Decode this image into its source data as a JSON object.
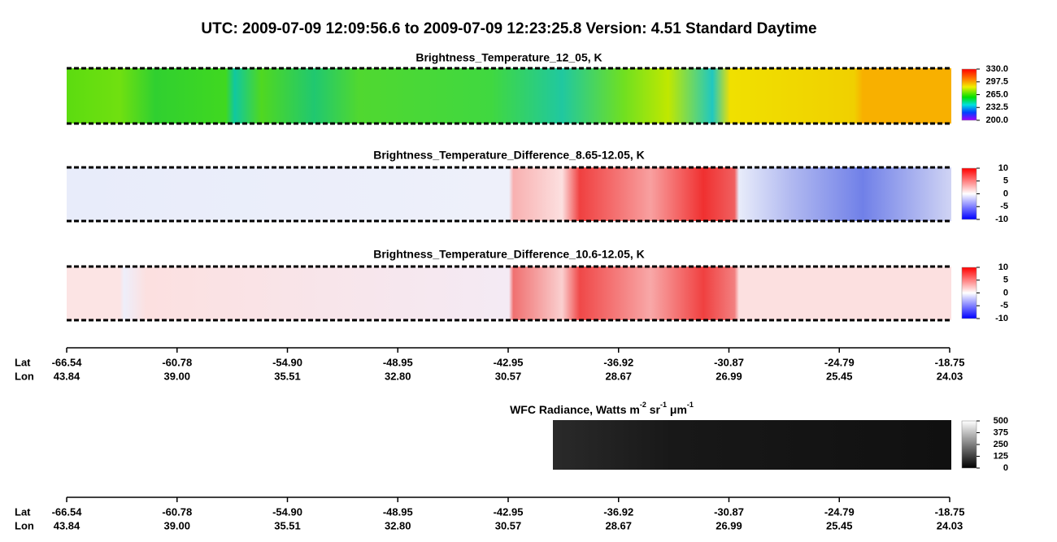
{
  "title": "UTC:  2009-07-09   12:09:56.6  to  2009-07-09   12:23:25.8    Version: 4.51  Standard Daytime",
  "panels": [
    {
      "title": "Brightness_Temperature_12_05, K",
      "colorbar": {
        "lim": [
          200,
          330
        ],
        "ticks": [
          {
            "value": 330,
            "label": "330.0"
          },
          297.5,
          {
            "value": 265,
            "label": "265.0"
          },
          232.5,
          {
            "value": 200,
            "label": "200.0"
          }
        ]
      }
    },
    {
      "title": "Brightness_Temperature_Difference_8.65-12.05, K",
      "colorbar": {
        "lim": [
          -10,
          10
        ],
        "ticks": [
          10,
          5,
          0,
          -5,
          -10
        ]
      }
    },
    {
      "title": "Brightness_Temperature_Difference_10.6-12.05, K",
      "colorbar": {
        "lim": [
          -10,
          10
        ],
        "ticks": [
          10,
          5,
          0,
          -5,
          -10
        ]
      }
    },
    {
      "title_parts": [
        "WFC Radiance, Watts m",
        "-2",
        " sr",
        "-1",
        " μm",
        "-1"
      ],
      "colorbar": {
        "lim": [
          0,
          500
        ],
        "ticks": [
          500,
          375,
          250,
          125,
          0
        ]
      }
    }
  ],
  "axes": [
    {
      "lat_label": "Lat",
      "lon_label": "Lon",
      "lat": [
        -66.54,
        -60.78,
        {
          "value": -54.9,
          "label": "-54.90"
        },
        -48.95,
        -42.95,
        -36.92,
        -30.87,
        -24.79,
        -18.75
      ],
      "lon": [
        43.84,
        {
          "value": 39,
          "label": "39.00"
        },
        35.51,
        {
          "value": 32.8,
          "label": "32.80"
        },
        30.57,
        28.67,
        26.99,
        25.45,
        24.03
      ]
    },
    {
      "lat_label": "Lat",
      "lon_label": "Lon",
      "lat": [
        -66.54,
        -60.78,
        {
          "value": -54.9,
          "label": "-54.90"
        },
        -48.95,
        -42.95,
        -36.92,
        -30.87,
        -24.79,
        -18.75
      ],
      "lon": [
        43.84,
        {
          "value": 39,
          "label": "39.00"
        },
        35.51,
        {
          "value": 32.8,
          "label": "32.80"
        },
        30.57,
        28.67,
        26.99,
        25.45,
        24.03
      ]
    }
  ]
}
